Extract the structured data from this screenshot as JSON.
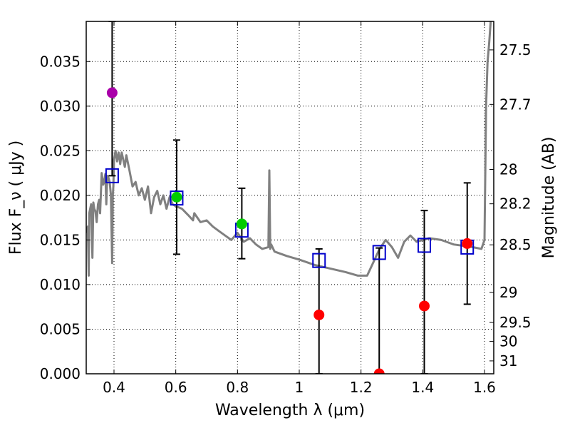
{
  "chart_data": {
    "type": "scatter",
    "xlabel": "Wavelength  λ (μm)",
    "ylabel": "Flux  F_ν  ( μJy )",
    "y2label": "Magnitude (AB)",
    "xlim": [
      0.31,
      1.63
    ],
    "ylim": [
      0.0,
      0.0395
    ],
    "grid": true,
    "x_ticks": [
      0.4,
      0.6,
      0.8,
      1.0,
      1.2,
      1.4,
      1.6
    ],
    "x_tick_labels": [
      "0.4",
      "0.6",
      "0.8",
      "1",
      "1.2",
      "1.4",
      "1.6"
    ],
    "y_ticks": [
      0.0,
      0.005,
      0.01,
      0.015,
      0.02,
      0.025,
      0.03,
      0.035
    ],
    "y_tick_labels": [
      "0.000",
      "0.005",
      "0.010",
      "0.015",
      "0.020",
      "0.025",
      "0.030",
      "0.035"
    ],
    "y2_ticks": [
      27.5,
      27.7,
      28,
      28.2,
      28.5,
      29,
      29.5,
      30,
      31
    ],
    "y2_tick_labels": [
      "27.5",
      "27.7",
      "28",
      "28.2",
      "28.5",
      "29",
      "29.5",
      "30",
      "31"
    ],
    "sed_color": "#808080",
    "sed_template": {
      "x": [
        0.31,
        0.315,
        0.318,
        0.32,
        0.323,
        0.326,
        0.33,
        0.333,
        0.336,
        0.34,
        0.344,
        0.348,
        0.352,
        0.355,
        0.36,
        0.365,
        0.368,
        0.372,
        0.375,
        0.378,
        0.382,
        0.386,
        0.39,
        0.394,
        0.396,
        0.398,
        0.4,
        0.405,
        0.41,
        0.415,
        0.42,
        0.425,
        0.43,
        0.435,
        0.44,
        0.45,
        0.46,
        0.47,
        0.48,
        0.49,
        0.5,
        0.51,
        0.52,
        0.53,
        0.54,
        0.55,
        0.56,
        0.57,
        0.58,
        0.59,
        0.6,
        0.62,
        0.64,
        0.656,
        0.66,
        0.68,
        0.7,
        0.72,
        0.74,
        0.76,
        0.78,
        0.8,
        0.82,
        0.84,
        0.86,
        0.88,
        0.9,
        0.903,
        0.906,
        0.909,
        0.92,
        0.96,
        1.0,
        1.05,
        1.1,
        1.15,
        1.19,
        1.22,
        1.24,
        1.26,
        1.28,
        1.3,
        1.32,
        1.34,
        1.36,
        1.38,
        1.4,
        1.42,
        1.46,
        1.5,
        1.56,
        1.59,
        1.6,
        1.605,
        1.61,
        1.615,
        1.62
      ],
      "y": [
        0.0158,
        0.0165,
        0.011,
        0.018,
        0.0185,
        0.019,
        0.013,
        0.0192,
        0.0185,
        0.0182,
        0.017,
        0.019,
        0.0195,
        0.018,
        0.0225,
        0.0212,
        0.0215,
        0.0224,
        0.019,
        0.0222,
        0.022,
        0.0215,
        0.02,
        0.0124,
        0.02,
        0.021,
        0.024,
        0.025,
        0.0238,
        0.0248,
        0.0235,
        0.0248,
        0.024,
        0.0232,
        0.0245,
        0.0228,
        0.021,
        0.0215,
        0.02,
        0.0208,
        0.0195,
        0.021,
        0.018,
        0.0198,
        0.0205,
        0.019,
        0.02,
        0.0185,
        0.0198,
        0.019,
        0.0188,
        0.0185,
        0.0178,
        0.0172,
        0.018,
        0.017,
        0.0172,
        0.0165,
        0.016,
        0.0155,
        0.015,
        0.0158,
        0.0148,
        0.0152,
        0.0145,
        0.014,
        0.0142,
        0.0228,
        0.014,
        0.0145,
        0.0137,
        0.0132,
        0.0128,
        0.0122,
        0.0118,
        0.0114,
        0.011,
        0.011,
        0.0125,
        0.014,
        0.015,
        0.0142,
        0.013,
        0.0148,
        0.0155,
        0.0148,
        0.015,
        0.0152,
        0.015,
        0.0145,
        0.0142,
        0.014,
        0.015,
        0.03,
        0.035,
        0.037,
        0.0395
      ]
    },
    "series": [
      {
        "name": "model_photometry",
        "marker": "square",
        "color": "#0000cc",
        "x": [
          0.394,
          0.603,
          0.814,
          1.064,
          1.259,
          1.405,
          1.544
        ],
        "y": [
          0.0222,
          0.0197,
          0.0161,
          0.0127,
          0.0136,
          0.0144,
          0.0142
        ]
      },
      {
        "name": "observed_detections",
        "marker": "circle",
        "x": [
          0.394,
          0.603,
          0.814,
          1.064,
          1.405,
          1.544
        ],
        "y": [
          0.0315,
          0.0198,
          0.0168,
          0.0066,
          0.0076,
          0.0146
        ],
        "yerr_low": [
          0.0222,
          0.0134,
          0.0129,
          0.0,
          0.0,
          0.0078
        ],
        "yerr_high": [
          0.0395,
          0.0262,
          0.0208,
          0.014,
          0.0183,
          0.0214
        ],
        "colors": [
          "#aa00aa",
          "#00cc00",
          "#00cc00",
          "#ff0000",
          "#ff0000",
          "#ff0000"
        ]
      },
      {
        "name": "observed_nondetection",
        "marker": "circle",
        "x": [
          1.259
        ],
        "y": [
          0.0
        ],
        "yerr_low": [
          0.0
        ],
        "yerr_high": [
          0.0141
        ],
        "colors": [
          "#ff0000"
        ]
      }
    ]
  }
}
